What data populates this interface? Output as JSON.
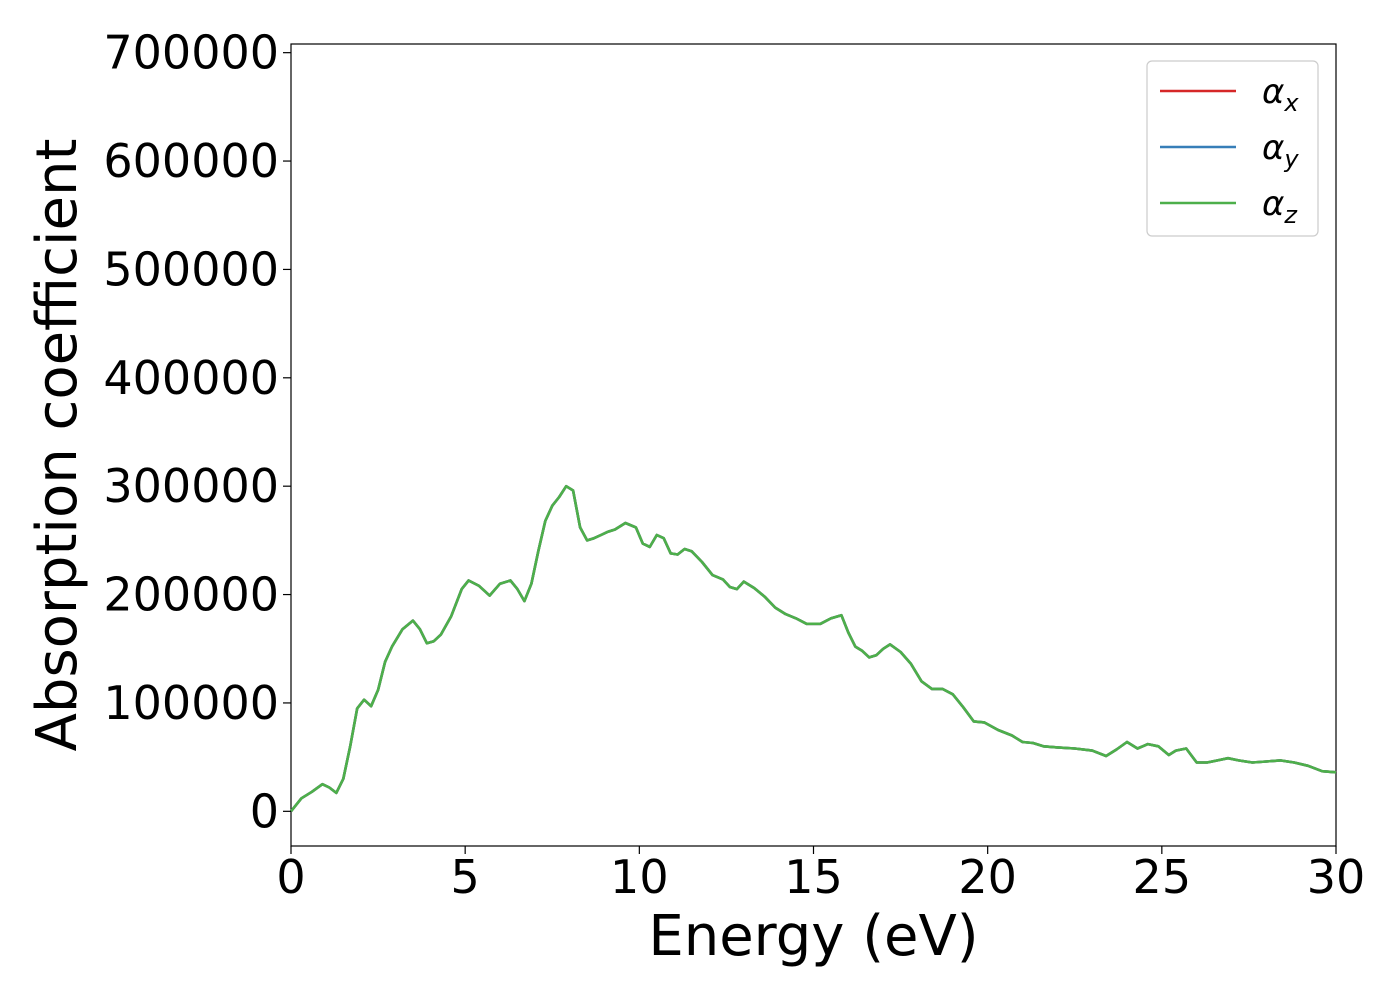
{
  "chart_data": {
    "type": "line",
    "title": "",
    "xlabel": "Energy (eV)",
    "ylabel": "Absorption coefficient",
    "xlim": [
      0,
      30
    ],
    "ylim": [
      -32000,
      708000
    ],
    "xticks": [
      "0",
      "5",
      "10",
      "15",
      "20",
      "25",
      "30"
    ],
    "yticks": [
      "0",
      "100000",
      "200000",
      "300000",
      "400000",
      "500000",
      "600000",
      "700000"
    ],
    "grid": false,
    "legend_position": "top-right",
    "series": [
      {
        "name": "α_x",
        "subscript": "x",
        "color": "#d62728",
        "x": [
          0,
          0.3,
          0.6,
          0.9,
          1.1,
          1.3,
          1.5,
          1.7,
          1.9,
          2.1,
          2.3,
          2.5,
          2.7,
          2.9,
          3.2,
          3.5,
          3.7,
          3.9,
          4.1,
          4.3,
          4.6,
          4.9,
          5.1,
          5.4,
          5.7,
          6.0,
          6.3,
          6.5,
          6.7,
          6.9,
          7.1,
          7.3,
          7.5,
          7.7,
          7.9,
          8.1,
          8.3,
          8.5,
          8.7,
          8.9,
          9.1,
          9.3,
          9.6,
          9.9,
          10.1,
          10.3,
          10.5,
          10.7,
          10.9,
          11.1,
          11.3,
          11.5,
          11.8,
          12.1,
          12.4,
          12.6,
          12.8,
          13.0,
          13.3,
          13.6,
          13.9,
          14.2,
          14.5,
          14.8,
          15.2,
          15.5,
          15.8,
          16.0,
          16.2,
          16.4,
          16.6,
          16.8,
          17.0,
          17.2,
          17.5,
          17.8,
          18.1,
          18.4,
          18.7,
          19.0,
          19.3,
          19.6,
          19.9,
          20.3,
          20.7,
          21.0,
          21.3,
          21.6,
          22.0,
          22.5,
          23.0,
          23.4,
          23.7,
          24.0,
          24.3,
          24.6,
          24.9,
          25.2,
          25.4,
          25.7,
          26.0,
          26.3,
          26.6,
          26.9,
          27.2,
          27.6,
          28.0,
          28.4,
          28.8,
          29.2,
          29.6,
          30.0
        ],
        "y": [
          0,
          12000,
          18000,
          25000,
          22000,
          17000,
          30000,
          60000,
          95000,
          103000,
          97000,
          112000,
          138000,
          152000,
          168000,
          176000,
          168000,
          155000,
          157000,
          163000,
          180000,
          205000,
          213000,
          208000,
          199000,
          210000,
          213000,
          205000,
          194000,
          210000,
          240000,
          268000,
          282000,
          290000,
          300000,
          296000,
          262000,
          250000,
          252000,
          255000,
          258000,
          260000,
          266000,
          262000,
          247000,
          244000,
          255000,
          252000,
          238000,
          237000,
          242000,
          240000,
          230000,
          218000,
          214000,
          207000,
          205000,
          212000,
          206000,
          198000,
          188000,
          182000,
          178000,
          173000,
          173000,
          178000,
          181000,
          165000,
          152000,
          148000,
          142000,
          144000,
          150000,
          154000,
          147000,
          136000,
          120000,
          113000,
          113000,
          108000,
          96000,
          83000,
          82000,
          75000,
          70000,
          64000,
          63000,
          60000,
          59000,
          58000,
          56000,
          51000,
          57000,
          64000,
          58000,
          62000,
          60000,
          52000,
          56000,
          58000,
          45000,
          45000,
          47000,
          49000,
          47000,
          45000,
          46000,
          47000,
          45000,
          42000,
          37000,
          36000
        ]
      },
      {
        "name": "α_y",
        "subscript": "y",
        "color": "#377eb8",
        "x": [
          0,
          0.3,
          0.6,
          0.9,
          1.1,
          1.3,
          1.5,
          1.7,
          1.9,
          2.1,
          2.3,
          2.5,
          2.7,
          2.9,
          3.2,
          3.5,
          3.7,
          3.9,
          4.1,
          4.3,
          4.6,
          4.9,
          5.1,
          5.4,
          5.7,
          6.0,
          6.3,
          6.5,
          6.7,
          6.9,
          7.1,
          7.3,
          7.5,
          7.7,
          7.9,
          8.1,
          8.3,
          8.5,
          8.7,
          8.9,
          9.1,
          9.3,
          9.6,
          9.9,
          10.1,
          10.3,
          10.5,
          10.7,
          10.9,
          11.1,
          11.3,
          11.5,
          11.8,
          12.1,
          12.4,
          12.6,
          12.8,
          13.0,
          13.3,
          13.6,
          13.9,
          14.2,
          14.5,
          14.8,
          15.2,
          15.5,
          15.8,
          16.0,
          16.2,
          16.4,
          16.6,
          16.8,
          17.0,
          17.2,
          17.5,
          17.8,
          18.1,
          18.4,
          18.7,
          19.0,
          19.3,
          19.6,
          19.9,
          20.3,
          20.7,
          21.0,
          21.3,
          21.6,
          22.0,
          22.5,
          23.0,
          23.4,
          23.7,
          24.0,
          24.3,
          24.6,
          24.9,
          25.2,
          25.4,
          25.7,
          26.0,
          26.3,
          26.6,
          26.9,
          27.2,
          27.6,
          28.0,
          28.4,
          28.8,
          29.2,
          29.6,
          30.0
        ],
        "y": [
          0,
          12000,
          18000,
          25000,
          22000,
          17000,
          30000,
          60000,
          95000,
          103000,
          97000,
          112000,
          138000,
          152000,
          168000,
          176000,
          168000,
          155000,
          157000,
          163000,
          180000,
          205000,
          213000,
          208000,
          199000,
          210000,
          213000,
          205000,
          194000,
          210000,
          240000,
          268000,
          282000,
          290000,
          300000,
          296000,
          262000,
          250000,
          252000,
          255000,
          258000,
          260000,
          266000,
          262000,
          247000,
          244000,
          255000,
          252000,
          238000,
          237000,
          242000,
          240000,
          230000,
          218000,
          214000,
          207000,
          205000,
          212000,
          206000,
          198000,
          188000,
          182000,
          178000,
          173000,
          173000,
          178000,
          181000,
          165000,
          152000,
          148000,
          142000,
          144000,
          150000,
          154000,
          147000,
          136000,
          120000,
          113000,
          113000,
          108000,
          96000,
          83000,
          82000,
          75000,
          70000,
          64000,
          63000,
          60000,
          59000,
          58000,
          56000,
          51000,
          57000,
          64000,
          58000,
          62000,
          60000,
          52000,
          56000,
          58000,
          45000,
          45000,
          47000,
          49000,
          47000,
          45000,
          46000,
          47000,
          45000,
          42000,
          37000,
          36000
        ]
      },
      {
        "name": "α_z",
        "subscript": "z",
        "color": "#4daf4a",
        "x": [
          0,
          0.3,
          0.6,
          0.9,
          1.1,
          1.3,
          1.5,
          1.7,
          1.9,
          2.1,
          2.3,
          2.5,
          2.7,
          2.9,
          3.2,
          3.5,
          3.7,
          3.9,
          4.1,
          4.3,
          4.6,
          4.9,
          5.1,
          5.4,
          5.7,
          6.0,
          6.3,
          6.5,
          6.7,
          6.9,
          7.1,
          7.3,
          7.5,
          7.7,
          7.9,
          8.1,
          8.3,
          8.5,
          8.7,
          8.9,
          9.1,
          9.3,
          9.6,
          9.9,
          10.1,
          10.3,
          10.5,
          10.7,
          10.9,
          11.1,
          11.3,
          11.5,
          11.8,
          12.1,
          12.4,
          12.6,
          12.8,
          13.0,
          13.3,
          13.6,
          13.9,
          14.2,
          14.5,
          14.8,
          15.2,
          15.5,
          15.8,
          16.0,
          16.2,
          16.4,
          16.6,
          16.8,
          17.0,
          17.2,
          17.5,
          17.8,
          18.1,
          18.4,
          18.7,
          19.0,
          19.3,
          19.6,
          19.9,
          20.3,
          20.7,
          21.0,
          21.3,
          21.6,
          22.0,
          22.5,
          23.0,
          23.4,
          23.7,
          24.0,
          24.3,
          24.6,
          24.9,
          25.2,
          25.4,
          25.7,
          26.0,
          26.3,
          26.6,
          26.9,
          27.2,
          27.6,
          28.0,
          28.4,
          28.8,
          29.2,
          29.6,
          30.0
        ],
        "y": [
          0,
          12000,
          18000,
          25000,
          22000,
          17000,
          30000,
          60000,
          95000,
          103000,
          97000,
          112000,
          138000,
          152000,
          168000,
          176000,
          168000,
          155000,
          157000,
          163000,
          180000,
          205000,
          213000,
          208000,
          199000,
          210000,
          213000,
          205000,
          194000,
          210000,
          240000,
          268000,
          282000,
          290000,
          300000,
          296000,
          262000,
          250000,
          252000,
          255000,
          258000,
          260000,
          266000,
          262000,
          247000,
          244000,
          255000,
          252000,
          238000,
          237000,
          242000,
          240000,
          230000,
          218000,
          214000,
          207000,
          205000,
          212000,
          206000,
          198000,
          188000,
          182000,
          178000,
          173000,
          173000,
          178000,
          181000,
          165000,
          152000,
          148000,
          142000,
          144000,
          150000,
          154000,
          147000,
          136000,
          120000,
          113000,
          113000,
          108000,
          96000,
          83000,
          82000,
          75000,
          70000,
          64000,
          63000,
          60000,
          59000,
          58000,
          56000,
          51000,
          57000,
          64000,
          58000,
          62000,
          60000,
          52000,
          56000,
          58000,
          45000,
          45000,
          47000,
          49000,
          47000,
          45000,
          46000,
          47000,
          45000,
          42000,
          37000,
          36000
        ]
      }
    ]
  }
}
